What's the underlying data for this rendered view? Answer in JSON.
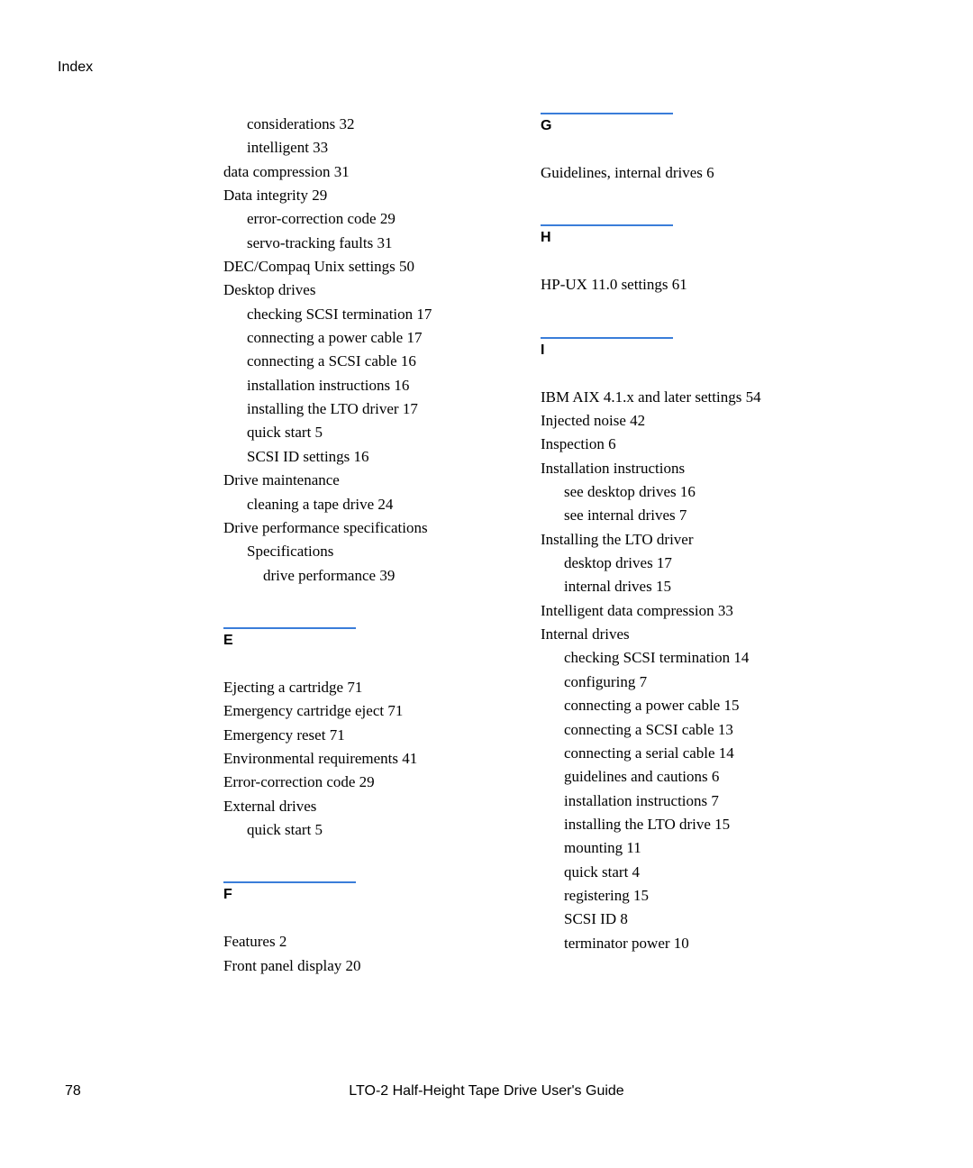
{
  "header": {
    "label": "Index"
  },
  "left": {
    "entries_top": [
      {
        "text": "considerations 32",
        "indent": 1
      },
      {
        "text": "intelligent 33",
        "indent": 1
      },
      {
        "text": "data compression 31",
        "indent": 0
      },
      {
        "text": "Data integrity 29",
        "indent": 0
      },
      {
        "text": "error-correction code 29",
        "indent": 1
      },
      {
        "text": "servo-tracking faults 31",
        "indent": 1
      },
      {
        "text": "DEC/Compaq Unix settings 50",
        "indent": 0
      },
      {
        "text": "Desktop drives",
        "indent": 0
      },
      {
        "text": "checking SCSI termination 17",
        "indent": 1
      },
      {
        "text": "connecting a power cable 17",
        "indent": 1
      },
      {
        "text": "connecting a SCSI cable 16",
        "indent": 1
      },
      {
        "text": "installation instructions 16",
        "indent": 1
      },
      {
        "text": "installing the LTO driver 17",
        "indent": 1
      },
      {
        "text": "quick start 5",
        "indent": 1
      },
      {
        "text": "SCSI ID settings 16",
        "indent": 1
      },
      {
        "text": "Drive maintenance",
        "indent": 0
      },
      {
        "text": "cleaning a tape drive 24",
        "indent": 1
      },
      {
        "text": "Drive performance specifications",
        "indent": 0
      },
      {
        "text": "Specifications",
        "indent": 1
      },
      {
        "text": "drive performance 39",
        "indent": 2
      }
    ],
    "section_E": {
      "letter": "E"
    },
    "entries_E": [
      {
        "text": "Ejecting a cartridge 71",
        "indent": 0
      },
      {
        "text": "Emergency cartridge eject 71",
        "indent": 0
      },
      {
        "text": "Emergency reset 71",
        "indent": 0
      },
      {
        "text": "Environmental requirements 41",
        "indent": 0
      },
      {
        "text": "Error-correction code 29",
        "indent": 0
      },
      {
        "text": "External drives",
        "indent": 0
      },
      {
        "text": "quick start 5",
        "indent": 1
      }
    ],
    "section_F": {
      "letter": "F"
    },
    "entries_F": [
      {
        "text": "Features 2",
        "indent": 0
      },
      {
        "text": "Front panel display 20",
        "indent": 0
      }
    ]
  },
  "right": {
    "section_G": {
      "letter": "G"
    },
    "entries_G": [
      {
        "text": "Guidelines, internal drives 6",
        "indent": 0
      }
    ],
    "section_H": {
      "letter": "H"
    },
    "entries_H": [
      {
        "text": "HP-UX 11.0 settings 61",
        "indent": 0
      }
    ],
    "section_I": {
      "letter": "I"
    },
    "entries_I": [
      {
        "text": "IBM AIX 4.1.x and later settings 54",
        "indent": 0
      },
      {
        "text": "Injected noise 42",
        "indent": 0
      },
      {
        "text": "Inspection 6",
        "indent": 0
      },
      {
        "text": "Installation instructions",
        "indent": 0
      },
      {
        "text": "see desktop drives 16",
        "indent": 1
      },
      {
        "text": "see internal drives 7",
        "indent": 1
      },
      {
        "text": "Installing the LTO driver",
        "indent": 0
      },
      {
        "text": "desktop drives 17",
        "indent": 1
      },
      {
        "text": "internal drives 15",
        "indent": 1
      },
      {
        "text": "Intelligent data compression 33",
        "indent": 0
      },
      {
        "text": "Internal drives",
        "indent": 0
      },
      {
        "text": "checking SCSI termination 14",
        "indent": 1
      },
      {
        "text": "configuring 7",
        "indent": 1
      },
      {
        "text": "connecting a power cable 15",
        "indent": 1
      },
      {
        "text": "connecting a SCSI cable 13",
        "indent": 1
      },
      {
        "text": "connecting a serial cable 14",
        "indent": 1
      },
      {
        "text": "guidelines and cautions 6",
        "indent": 1
      },
      {
        "text": "installation instructions 7",
        "indent": 1
      },
      {
        "text": "installing the LTO drive 15",
        "indent": 1
      },
      {
        "text": "mounting 11",
        "indent": 1
      },
      {
        "text": "quick start 4",
        "indent": 1
      },
      {
        "text": "registering 15",
        "indent": 1
      },
      {
        "text": "SCSI ID 8",
        "indent": 1
      },
      {
        "text": "terminator power 10",
        "indent": 1
      }
    ]
  },
  "footer": {
    "page": "78",
    "title": "LTO-2 Half-Height Tape Drive User's Guide"
  },
  "style": {
    "hr_color": "#3a7dd9",
    "hr_width": 147,
    "hr_height": 2,
    "main_font": "Palatino Linotype",
    "ui_font": "Arial",
    "entry_fontsize": 17,
    "letter_fontsize": 16,
    "background": "#ffffff",
    "text_color": "#000000"
  }
}
